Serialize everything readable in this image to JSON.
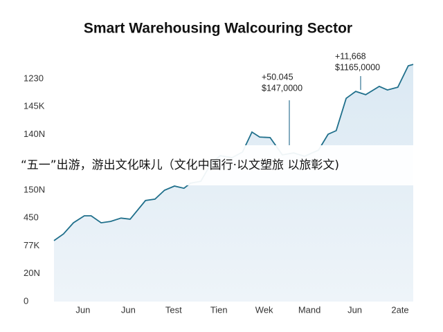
{
  "chart_data": {
    "type": "line",
    "title": "Smart Warehousing Walcouring Sector",
    "x": [
      0.36,
      0.57,
      0.79,
      1.03,
      1.18,
      1.4,
      1.61,
      1.84,
      2.04,
      2.38,
      2.59,
      2.8,
      3.02,
      3.23,
      3.37,
      3.6,
      3.83,
      4.03,
      4.29,
      4.52,
      4.73,
      4.9,
      5.13,
      5.4,
      5.65,
      5.89,
      6.2,
      6.41,
      6.59,
      6.81,
      7.02,
      7.24,
      7.54,
      7.72,
      7.95,
      8.18,
      8.29
    ],
    "series": [
      {
        "color": "#1f6f8b",
        "values": [
          2.19,
          2.43,
          2.83,
          3.08,
          3.08,
          2.83,
          2.88,
          3.0,
          2.96,
          3.63,
          3.68,
          4.0,
          4.15,
          4.07,
          4.25,
          4.32,
          4.97,
          5.24,
          5.17,
          5.37,
          6.09,
          5.91,
          5.89,
          5.27,
          5.34,
          5.22,
          5.44,
          6.01,
          6.14,
          7.3,
          7.55,
          7.43,
          7.73,
          7.6,
          7.7,
          8.47,
          8.52
        ]
      }
    ],
    "xlim": [
      0.36,
      8.29
    ],
    "xticks": [
      {
        "value": 1,
        "label": "Jun"
      },
      {
        "value": 2,
        "label": "Jun"
      },
      {
        "value": 3,
        "label": "Test"
      },
      {
        "value": 4,
        "label": "Tien"
      },
      {
        "value": 5,
        "label": "Wek"
      },
      {
        "value": 6,
        "label": "Mand"
      },
      {
        "value": 7,
        "label": "Jun"
      },
      {
        "value": 8,
        "label": "2ate"
      }
    ],
    "ylim": [
      0,
      9
    ],
    "yticks": [
      {
        "value": 8,
        "label": "1230"
      },
      {
        "value": 7,
        "label": "145K"
      },
      {
        "value": 6,
        "label": "140N"
      },
      {
        "value": 4,
        "label": "150N"
      },
      {
        "value": 3,
        "label": "450"
      },
      {
        "value": 2,
        "label": "77K"
      },
      {
        "value": 1,
        "label": "20N"
      },
      0
    ],
    "annotations": [
      {
        "lines": [
          "+50.045",
          "$147,0000"
        ]
      },
      {
        "lines": [
          "+11,668",
          "$1165,0000"
        ]
      }
    ],
    "overlay_text": "“五一”出游，游出文化味儿（文化中国行·以文塑旅 以旅彰文)"
  }
}
